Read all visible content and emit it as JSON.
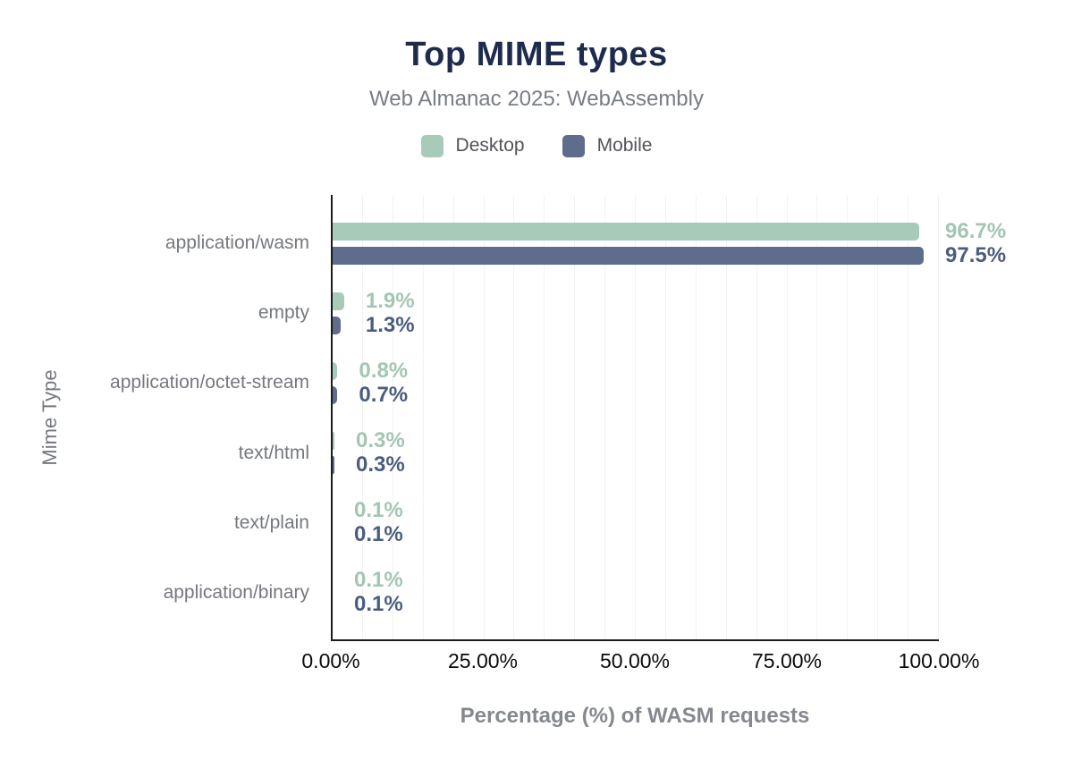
{
  "header": {
    "title": "Top MIME types",
    "subtitle": "Web Almanac 2025: WebAssembly"
  },
  "colors": {
    "title": "#1e2b4d",
    "desktop_bar": "#a8cab8",
    "desktop_label": "#a3c6b2",
    "mobile_bar": "#5e6d8c",
    "mobile_label": "#4b5d7f",
    "axis_line": "#1a1c20",
    "gridline": "#f2f2f5",
    "category_text": "#75787e",
    "axis_title_text": "#85898f"
  },
  "chart_data": {
    "type": "bar",
    "orientation": "horizontal",
    "title": "Top MIME types",
    "subtitle": "Web Almanac 2025: WebAssembly",
    "categories": [
      "application/wasm",
      "empty",
      "application/octet-stream",
      "text/html",
      "text/plain",
      "application/binary"
    ],
    "series": [
      {
        "name": "Desktop",
        "color": "#a8cab8",
        "label_color": "#a3c6b2",
        "values": [
          96.7,
          1.9,
          0.8,
          0.3,
          0.1,
          0.1
        ],
        "labels": [
          "96.7%",
          "1.9%",
          "0.8%",
          "0.3%",
          "0.1%",
          "0.1%"
        ]
      },
      {
        "name": "Mobile",
        "color": "#5e6d8c",
        "label_color": "#4b5d7f",
        "values": [
          97.5,
          1.3,
          0.7,
          0.3,
          0.1,
          0.1
        ],
        "labels": [
          "97.5%",
          "1.3%",
          "0.7%",
          "0.3%",
          "0.1%",
          "0.1%"
        ]
      }
    ],
    "xlabel": "Percentage (%) of WASM requests",
    "ylabel": "Mime Type",
    "xlim": [
      0,
      100
    ],
    "x_ticks": [
      "0.00%",
      "25.00%",
      "50.00%",
      "75.00%",
      "100.00%"
    ],
    "x_tick_values": [
      0,
      25,
      50,
      75,
      100
    ],
    "grid": "minor-vertical-every-5pct",
    "legend_position": "top"
  }
}
